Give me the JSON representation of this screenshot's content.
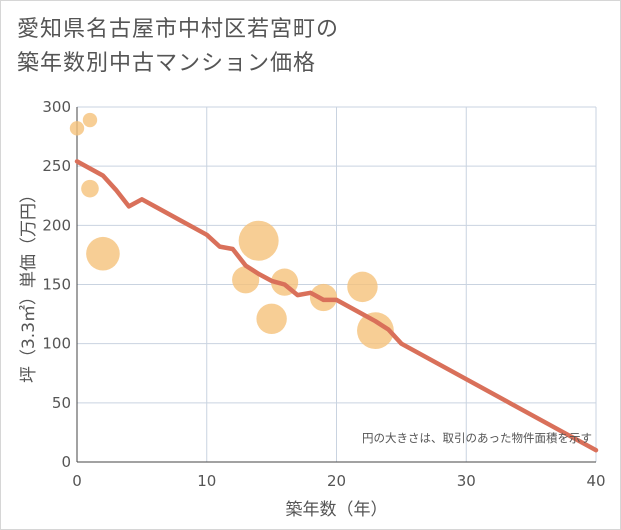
{
  "title_line1": "愛知県名古屋市中村区若宮町の",
  "title_line2": "築年数別中古マンション価格",
  "chart_data": {
    "type": "scatter",
    "title": "愛知県名古屋市中村区若宮町の築年数別中古マンション価格",
    "xlabel": "築年数（年）",
    "ylabel": "坪（3.3㎡）単価（万円）",
    "xlim": [
      0,
      40
    ],
    "ylim": [
      0,
      300
    ],
    "xticks": [
      0,
      10,
      20,
      30,
      40
    ],
    "yticks": [
      0,
      50,
      100,
      150,
      200,
      250,
      300
    ],
    "grid": true,
    "note": "円の大きさは、取引のあった物件面積を示す",
    "colors": {
      "bubble": "#f5c27a",
      "line": "#d9705a",
      "grid": "#c9d3e0"
    },
    "bubbles": [
      {
        "x": 0,
        "y": 282,
        "size": 1
      },
      {
        "x": 1,
        "y": 289,
        "size": 1
      },
      {
        "x": 1,
        "y": 231,
        "size": 1.5
      },
      {
        "x": 2,
        "y": 176,
        "size": 4
      },
      {
        "x": 13,
        "y": 154,
        "size": 3
      },
      {
        "x": 14,
        "y": 187,
        "size": 5
      },
      {
        "x": 15,
        "y": 121,
        "size": 3.5
      },
      {
        "x": 16,
        "y": 152,
        "size": 3
      },
      {
        "x": 19,
        "y": 139,
        "size": 3
      },
      {
        "x": 22,
        "y": 148,
        "size": 3.5
      },
      {
        "x": 23,
        "y": 111,
        "size": 4.5
      }
    ],
    "trend": {
      "x": [
        0,
        1,
        2,
        3,
        4,
        5,
        6,
        7,
        8,
        9,
        10,
        11,
        12,
        13,
        14,
        15,
        16,
        17,
        18,
        19,
        20,
        21,
        22,
        23,
        24,
        25,
        30,
        35,
        40
      ],
      "y": [
        254,
        248,
        242,
        230,
        216,
        222,
        216,
        210,
        204,
        198,
        192,
        182,
        180,
        166,
        159,
        153,
        150,
        141,
        143,
        137,
        137,
        131,
        125,
        119,
        112,
        100,
        70,
        40,
        10
      ]
    }
  }
}
